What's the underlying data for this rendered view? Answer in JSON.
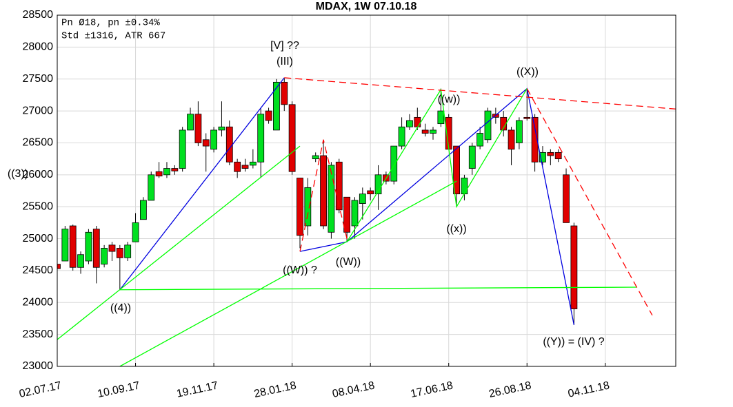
{
  "chart_data": {
    "type": "candlestick",
    "title": "MDAX, 1W 07.10.18",
    "info_lines": [
      "Pn  Ø18, pn ±0.34%",
      "Std ±1316, ATR 667"
    ],
    "x": [
      "02.07.17",
      "09.07.17",
      "16.07.17",
      "23.07.17",
      "30.07.17",
      "06.08.17",
      "13.08.17",
      "20.08.17",
      "27.08.17",
      "03.09.17",
      "10.09.17",
      "17.09.17",
      "24.09.17",
      "01.10.17",
      "08.10.17",
      "15.10.17",
      "22.10.17",
      "29.10.17",
      "05.11.17",
      "12.11.17",
      "19.11.17",
      "26.11.17",
      "03.12.17",
      "10.12.17",
      "17.12.17",
      "24.12.17",
      "31.12.17",
      "07.01.18",
      "14.01.18",
      "21.01.18",
      "28.01.18",
      "04.02.18",
      "11.02.18",
      "18.02.18",
      "25.02.18",
      "04.03.18",
      "11.03.18",
      "18.03.18",
      "25.03.18",
      "01.04.18",
      "08.04.18",
      "15.04.18",
      "22.04.18",
      "29.04.18",
      "06.05.18",
      "13.05.18",
      "20.05.18",
      "27.05.18",
      "03.06.18",
      "10.06.18",
      "17.06.18",
      "24.06.18",
      "01.07.18",
      "08.07.18",
      "15.07.18",
      "22.07.18",
      "29.07.18",
      "05.08.18",
      "12.08.18",
      "19.08.18",
      "26.08.18",
      "02.09.18",
      "09.09.18",
      "16.09.18",
      "23.09.18",
      "30.09.18",
      "07.10.18"
    ],
    "open": [
      24600,
      24650,
      25200,
      24550,
      24650,
      25150,
      24600,
      24900,
      24850,
      24700,
      24950,
      25300,
      25600,
      26050,
      26000,
      26100,
      26100,
      26700,
      26950,
      26550,
      26400,
      26700,
      26750,
      26200,
      26150,
      26150,
      26200,
      27000,
      26700,
      27450,
      27100,
      25950,
      25200,
      26250,
      26300,
      25100,
      26200,
      25650,
      25200,
      25550,
      25750,
      25700,
      26000,
      25900,
      26450,
      26750,
      26900,
      26700,
      26650,
      26800,
      26900,
      26450,
      25700,
      26100,
      26450,
      26550,
      26950,
      26900,
      26700,
      26500,
      26900,
      26900,
      26200,
      26350,
      26350,
      26000,
      25200
    ],
    "high": [
      24700,
      25200,
      25220,
      24800,
      25150,
      25200,
      24900,
      24950,
      24900,
      24950,
      25400,
      25650,
      26050,
      26200,
      26200,
      26150,
      26750,
      27050,
      27150,
      26650,
      26750,
      27150,
      26850,
      26250,
      26250,
      26400,
      27050,
      27050,
      27500,
      27520,
      27150,
      25950,
      25950,
      26350,
      26550,
      26200,
      26250,
      25650,
      25650,
      25800,
      25800,
      26150,
      26050,
      26450,
      26900,
      26950,
      27050,
      26800,
      26750,
      27350,
      26950,
      26450,
      26000,
      26500,
      26750,
      27050,
      27050,
      27000,
      26750,
      26900,
      27350,
      26950,
      26450,
      26400,
      26400,
      26100,
      25250
    ],
    "low": [
      24500,
      24650,
      24500,
      24450,
      24600,
      24300,
      24550,
      24650,
      24200,
      24650,
      24950,
      25300,
      25600,
      25950,
      25950,
      26000,
      26050,
      26700,
      26450,
      26050,
      26350,
      26600,
      26150,
      25950,
      26050,
      26100,
      25950,
      26800,
      26700,
      27000,
      26000,
      24850,
      25050,
      26200,
      25150,
      25000,
      25400,
      24950,
      25000,
      25300,
      25600,
      25450,
      25850,
      25850,
      26400,
      26700,
      26700,
      26600,
      26550,
      26750,
      26400,
      25500,
      25600,
      26000,
      26400,
      26500,
      26800,
      26600,
      26150,
      26400,
      26850,
      26050,
      26150,
      26150,
      26200,
      25250,
      23650
    ],
    "close": [
      24530,
      25150,
      24550,
      24750,
      25100,
      24550,
      24850,
      24800,
      24700,
      24900,
      25250,
      25600,
      26000,
      25980,
      26100,
      26060,
      26700,
      26950,
      26500,
      26450,
      26700,
      26750,
      26200,
      26050,
      26100,
      26200,
      26950,
      26850,
      27450,
      27100,
      26050,
      25050,
      25800,
      26300,
      25200,
      26150,
      25450,
      25100,
      25600,
      25700,
      25700,
      26000,
      25900,
      26450,
      26750,
      26850,
      26750,
      26650,
      26700,
      27000,
      26400,
      25700,
      25950,
      26450,
      26650,
      27000,
      26900,
      26700,
      26400,
      26850,
      26880,
      26200,
      26350,
      26300,
      26250,
      25250,
      23900
    ],
    "up_color": "#00e020",
    "down_color": "#e00000",
    "xlim": [
      "02.07.17",
      "06.01.19"
    ],
    "xticks": [
      "02.07.17",
      "10.09.17",
      "19.11.17",
      "28.01.18",
      "08.04.18",
      "17.06.18",
      "26.08.18",
      "04.11.18"
    ],
    "ylim": [
      23000,
      28500
    ],
    "yticks": [
      23000,
      23500,
      24000,
      24500,
      25000,
      25500,
      26000,
      26500,
      27000,
      27500,
      28000,
      28500
    ],
    "grid": true,
    "annotations": [
      "[V] ??",
      "(III)",
      "((3))",
      "((4))",
      "((W)) ?",
      "((W))",
      "((w))",
      "((x))",
      "((X))",
      "((Y)) = (IV) ?"
    ],
    "trendlines": [
      {
        "color": "#0000e0",
        "dashed": false,
        "x": [
          "27.08.17",
          "21.01.18"
        ],
        "y": [
          24200,
          27520
        ]
      },
      {
        "color": "#0000e0",
        "dashed": false,
        "x": [
          "04.02.18",
          "18.03.18",
          "26.08.18",
          "07.10.18"
        ],
        "y": [
          24800,
          24950,
          27350,
          23650
        ]
      },
      {
        "color": "#00ff00",
        "dashed": false,
        "x": [
          "27.08.17",
          "02.12.18"
        ],
        "y": [
          24200,
          24240
        ]
      },
      {
        "color": "#00ff00",
        "dashed": false,
        "x": [
          "02.07.17",
          "04.02.18"
        ],
        "y": [
          23420,
          26450
        ]
      },
      {
        "color": "#00ff00",
        "dashed": false,
        "x": [
          "27.08.17",
          "24.06.18"
        ],
        "y": [
          23000,
          25900
        ]
      },
      {
        "color": "#00ff00",
        "dashed": false,
        "x": [
          "18.03.18",
          "10.06.18",
          "24.06.18",
          "26.08.18"
        ],
        "y": [
          24950,
          27335,
          25500,
          27350
        ]
      },
      {
        "color": "#ff0000",
        "dashed": true,
        "x": [
          "21.01.18",
          "06.01.19"
        ],
        "y": [
          27520,
          27030
        ]
      },
      {
        "color": "#ff0000",
        "dashed": true,
        "x": [
          "26.08.18",
          "16.12.18"
        ],
        "y": [
          27350,
          23800
        ]
      },
      {
        "color": "#ff0000",
        "dashed": true,
        "x": [
          "04.02.18",
          "25.02.18",
          "18.03.18"
        ],
        "y": [
          24800,
          26550,
          25000
        ]
      }
    ]
  }
}
